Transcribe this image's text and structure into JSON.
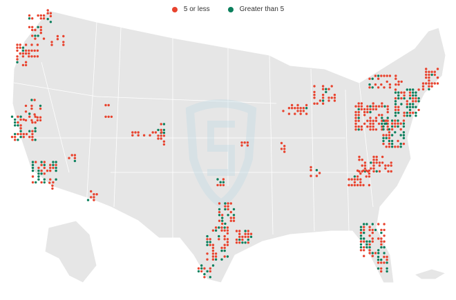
{
  "legend": {
    "items": [
      {
        "label": "5 or less",
        "color": "#e8432e"
      },
      {
        "label": "Greater than 5",
        "color": "#0b7f5c"
      }
    ]
  },
  "map": {
    "land_color": "#e6e6e6",
    "border_color": "#ffffff",
    "watermark_icon": "shield-logo-icon"
  }
}
